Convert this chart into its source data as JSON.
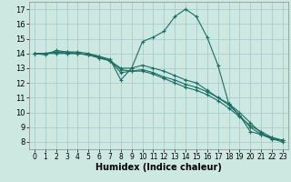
{
  "xlabel": "Humidex (Indice chaleur)",
  "bg_color": "#cce8e0",
  "grid_color": "#aacccc",
  "line_color": "#1a6e64",
  "xlim": [
    -0.5,
    23.5
  ],
  "ylim": [
    7.5,
    17.5
  ],
  "xticks": [
    0,
    1,
    2,
    3,
    4,
    5,
    6,
    7,
    8,
    9,
    10,
    11,
    12,
    13,
    14,
    15,
    16,
    17,
    18,
    19,
    20,
    21,
    22,
    23
  ],
  "yticks": [
    8,
    9,
    10,
    11,
    12,
    13,
    14,
    15,
    16,
    17
  ],
  "lines": [
    {
      "x": [
        0,
        1,
        2,
        3,
        4,
        5,
        6,
        7,
        8,
        9,
        10,
        11,
        12,
        13,
        14,
        15,
        16,
        17,
        18,
        19,
        20,
        21,
        22,
        23
      ],
      "y": [
        14.0,
        13.9,
        14.2,
        14.1,
        14.1,
        14.0,
        13.8,
        13.6,
        12.2,
        13.0,
        14.8,
        15.1,
        15.5,
        16.5,
        17.0,
        16.5,
        15.1,
        13.2,
        10.6,
        9.8,
        8.7,
        8.5,
        8.2,
        8.1
      ]
    },
    {
      "x": [
        0,
        1,
        2,
        3,
        4,
        5,
        6,
        7,
        8,
        9,
        10,
        11,
        12,
        13,
        14,
        15,
        16,
        17,
        18,
        19,
        20,
        21,
        22,
        23
      ],
      "y": [
        14.0,
        14.0,
        14.1,
        14.1,
        14.0,
        13.9,
        13.7,
        13.5,
        13.0,
        13.0,
        13.2,
        13.0,
        12.8,
        12.5,
        12.2,
        12.0,
        11.5,
        11.0,
        10.5,
        9.8,
        9.0,
        8.5,
        8.3,
        8.1
      ]
    },
    {
      "x": [
        0,
        1,
        2,
        3,
        4,
        5,
        6,
        7,
        8,
        9,
        10,
        11,
        12,
        13,
        14,
        15,
        16,
        17,
        18,
        19,
        20,
        21,
        22,
        23
      ],
      "y": [
        14.0,
        14.0,
        14.0,
        14.0,
        14.0,
        13.9,
        13.7,
        13.5,
        12.9,
        12.8,
        12.8,
        12.6,
        12.3,
        12.0,
        11.7,
        11.5,
        11.2,
        10.8,
        10.3,
        9.7,
        9.1,
        8.7,
        8.3,
        8.1
      ]
    },
    {
      "x": [
        0,
        1,
        2,
        3,
        4,
        5,
        6,
        7,
        8,
        9,
        10,
        11,
        12,
        13,
        14,
        15,
        16,
        17,
        18,
        19,
        20,
        21,
        22,
        23
      ],
      "y": [
        14.0,
        14.0,
        14.1,
        14.0,
        14.0,
        13.9,
        13.8,
        13.5,
        12.7,
        12.8,
        12.9,
        12.7,
        12.4,
        12.2,
        11.9,
        11.7,
        11.4,
        11.0,
        10.6,
        10.0,
        9.3,
        8.6,
        8.2,
        8.0
      ]
    }
  ]
}
